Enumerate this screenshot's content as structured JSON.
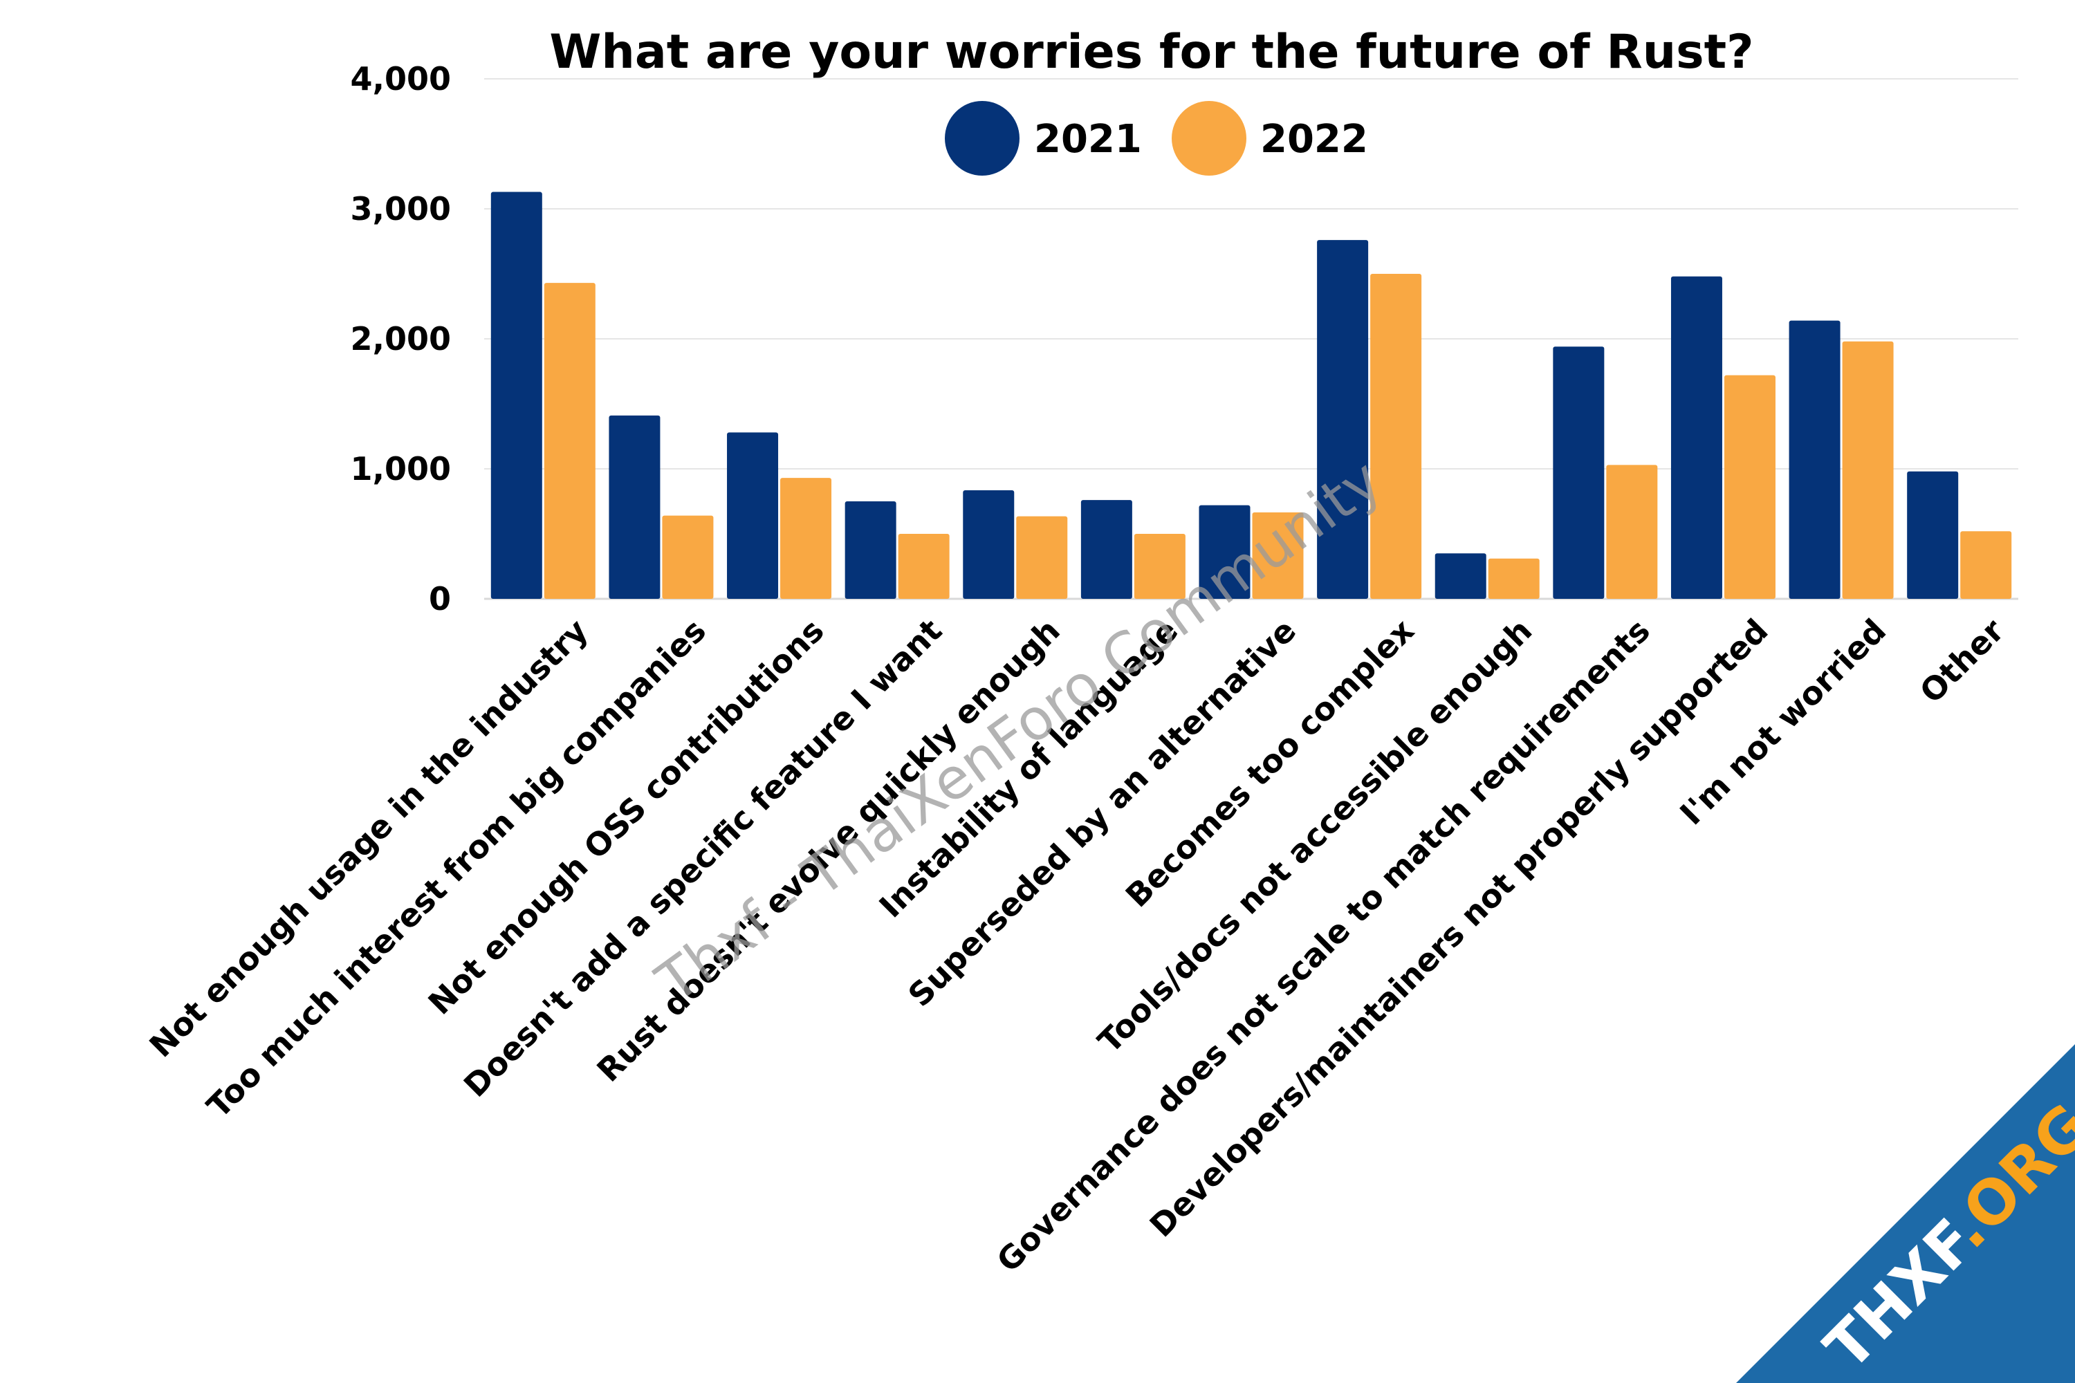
{
  "chart_data": {
    "type": "bar",
    "title": "What are your worries for the future of Rust?",
    "xlabel": "",
    "ylabel": "",
    "ylim": [
      0,
      4000
    ],
    "yticks": [
      0,
      1000,
      2000,
      3000,
      4000
    ],
    "ytick_labels": [
      "0",
      "1,000",
      "2,000",
      "3,000",
      "4,000"
    ],
    "grid": true,
    "legend_position": "top-center",
    "categories": [
      "Not enough usage in the industry",
      "Too much interest from big companies",
      "Not enough OSS contributions",
      "Doesn't add a specific feature I want",
      "Rust doesn't evolve quickly enough",
      "Instability of language",
      "Superseded by an alternative",
      "Becomes too complex",
      "Tools/docs not accessible enough",
      "Governance does not scale to match requirements",
      "Developers/maintainers not properly supported",
      "I'm not worried",
      "Other"
    ],
    "series": [
      {
        "name": "2021",
        "color": "#053378",
        "values": [
          3130,
          1410,
          1280,
          750,
          835,
          760,
          720,
          2760,
          350,
          1940,
          2480,
          2140,
          980
        ]
      },
      {
        "name": "2022",
        "color": "#f9a843",
        "values": [
          2430,
          640,
          930,
          500,
          635,
          500,
          665,
          2500,
          310,
          1030,
          1720,
          1980,
          520
        ]
      }
    ]
  },
  "watermark": "Thxf - ThaiXenForo Community",
  "logo": {
    "text_main": "THXF",
    "text_accent": ".ORG",
    "color_band": "#1d6aa8",
    "color_accent": "#f7a21b"
  }
}
